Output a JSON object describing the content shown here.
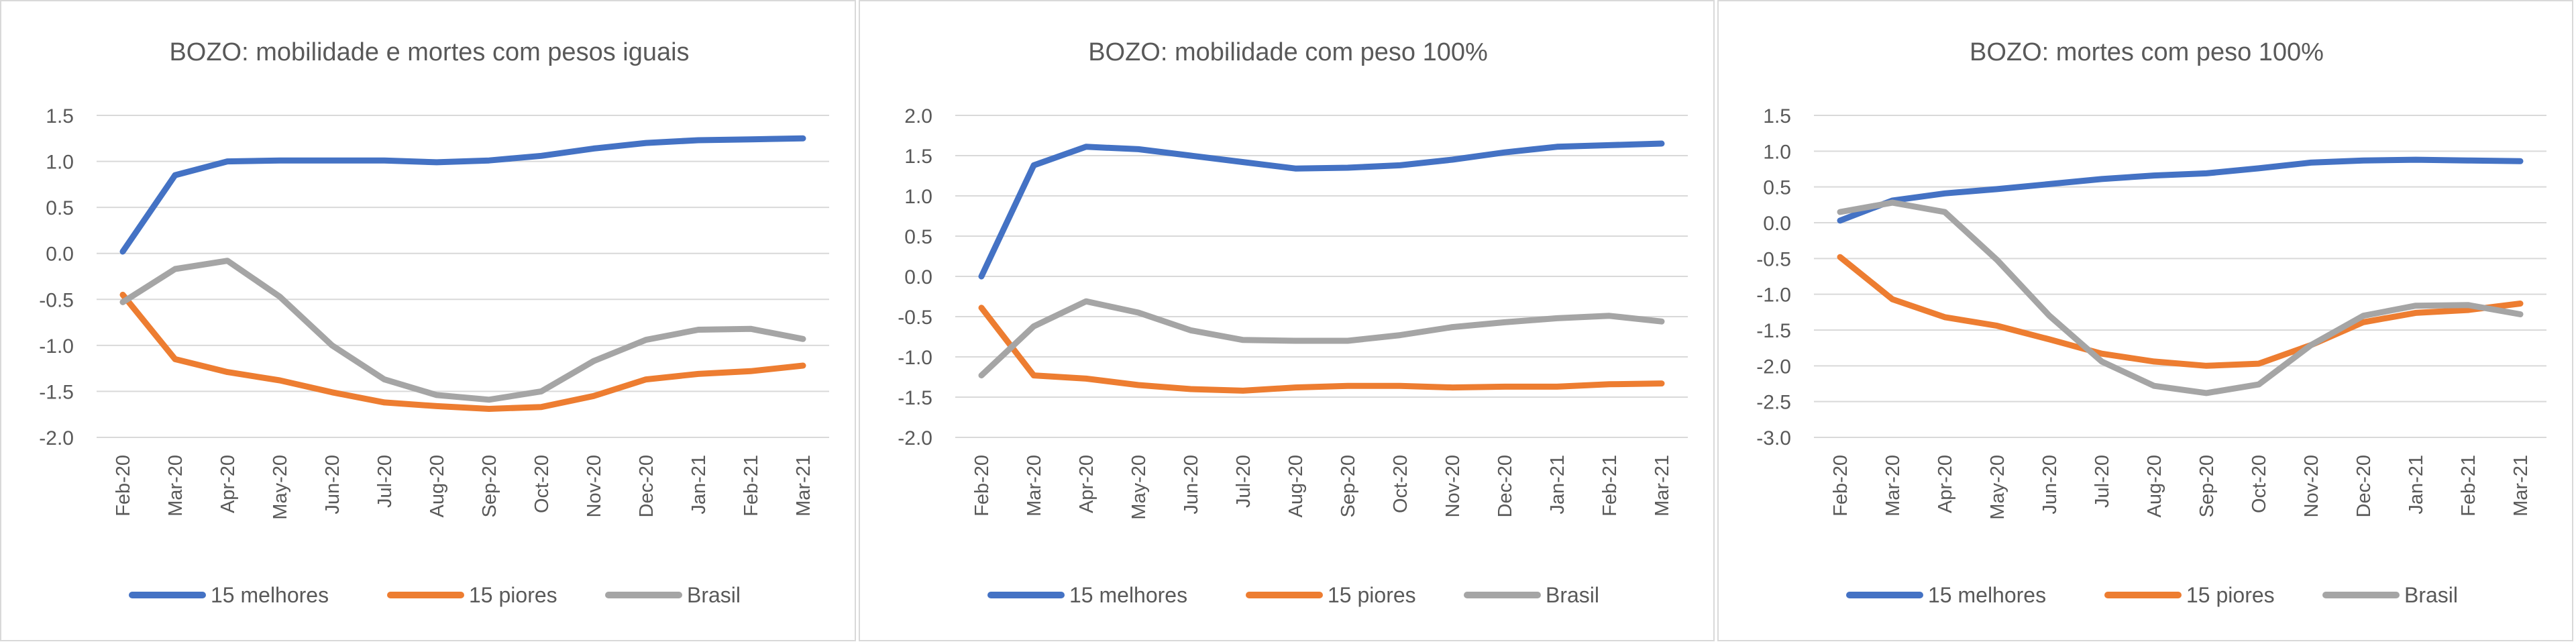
{
  "colors": {
    "15 melhores": "#4472C4",
    "15 piores": "#ED7D31",
    "Brasil": "#A5A5A5",
    "grid": "#D9D9D9",
    "text": "#595959"
  },
  "chart_data": [
    {
      "type": "line",
      "title": "BOZO: mobilidade e mortes com pesos iguais",
      "categories": [
        "Feb-20",
        "Mar-20",
        "Apr-20",
        "May-20",
        "Jun-20",
        "Jul-20",
        "Aug-20",
        "Sep-20",
        "Oct-20",
        "Nov-20",
        "Dec-20",
        "Jan-21",
        "Feb-21",
        "Mar-21"
      ],
      "ylim": [
        -2.0,
        1.5
      ],
      "yticks": [
        "1.5",
        "1.0",
        "0.5",
        "0.0",
        "-0.5",
        "-1.0",
        "-1.5",
        "-2.0"
      ],
      "grid": true,
      "legend": "bottom",
      "series": [
        {
          "name": "15 melhores",
          "values": [
            0.02,
            0.85,
            1.0,
            1.01,
            1.01,
            1.01,
            0.99,
            1.01,
            1.06,
            1.14,
            1.2,
            1.23,
            1.24,
            1.25
          ]
        },
        {
          "name": "15 piores",
          "values": [
            -0.45,
            -1.15,
            -1.29,
            -1.38,
            -1.51,
            -1.62,
            -1.66,
            -1.69,
            -1.67,
            -1.55,
            -1.37,
            -1.31,
            -1.28,
            -1.22
          ]
        },
        {
          "name": "Brasil",
          "values": [
            -0.53,
            -0.17,
            -0.08,
            -0.47,
            -1.0,
            -1.37,
            -1.54,
            -1.59,
            -1.5,
            -1.17,
            -0.94,
            -0.83,
            -0.82,
            -0.93
          ]
        }
      ]
    },
    {
      "type": "line",
      "title": "BOZO: mobilidade com peso 100%",
      "categories": [
        "Feb-20",
        "Mar-20",
        "Apr-20",
        "May-20",
        "Jun-20",
        "Jul-20",
        "Aug-20",
        "Sep-20",
        "Oct-20",
        "Nov-20",
        "Dec-20",
        "Jan-21",
        "Feb-21",
        "Mar-21"
      ],
      "ylim": [
        -2.0,
        2.0
      ],
      "yticks": [
        "2.0",
        "1.5",
        "1.0",
        "0.5",
        "0.0",
        "-0.5",
        "-1.0",
        "-1.5",
        "-2.0"
      ],
      "grid": true,
      "legend": "bottom",
      "series": [
        {
          "name": "15 melhores",
          "values": [
            0.0,
            1.38,
            1.61,
            1.58,
            1.5,
            1.42,
            1.34,
            1.35,
            1.38,
            1.45,
            1.54,
            1.61,
            1.63,
            1.65
          ]
        },
        {
          "name": "15 piores",
          "values": [
            -0.39,
            -1.23,
            -1.27,
            -1.35,
            -1.4,
            -1.42,
            -1.38,
            -1.36,
            -1.36,
            -1.38,
            -1.37,
            -1.37,
            -1.34,
            -1.33
          ]
        },
        {
          "name": "Brasil",
          "values": [
            -1.23,
            -0.62,
            -0.31,
            -0.45,
            -0.67,
            -0.79,
            -0.8,
            -0.8,
            -0.73,
            -0.63,
            -0.57,
            -0.52,
            -0.49,
            -0.56
          ]
        }
      ]
    },
    {
      "type": "line",
      "title": "BOZO: mortes com peso 100%",
      "categories": [
        "Feb-20",
        "Mar-20",
        "Apr-20",
        "May-20",
        "Jun-20",
        "Jul-20",
        "Aug-20",
        "Sep-20",
        "Oct-20",
        "Nov-20",
        "Dec-20",
        "Jan-21",
        "Feb-21",
        "Mar-21"
      ],
      "ylim": [
        -3.0,
        1.5
      ],
      "yticks": [
        "1.5",
        "1.0",
        "0.5",
        "0.0",
        "-0.5",
        "-1.0",
        "-1.5",
        "-2.0",
        "-2.5",
        "-3.0"
      ],
      "grid": true,
      "legend": "bottom",
      "series": [
        {
          "name": "15 melhores",
          "values": [
            0.03,
            0.31,
            0.41,
            0.47,
            0.54,
            0.61,
            0.66,
            0.69,
            0.76,
            0.84,
            0.87,
            0.88,
            0.87,
            0.86
          ]
        },
        {
          "name": "15 piores",
          "values": [
            -0.48,
            -1.07,
            -1.32,
            -1.44,
            -1.63,
            -1.83,
            -1.94,
            -2.0,
            -1.97,
            -1.71,
            -1.39,
            -1.26,
            -1.22,
            -1.13
          ]
        },
        {
          "name": "Brasil",
          "values": [
            0.15,
            0.28,
            0.15,
            -0.52,
            -1.3,
            -1.94,
            -2.28,
            -2.38,
            -2.26,
            -1.71,
            -1.3,
            -1.16,
            -1.15,
            -1.28
          ]
        }
      ]
    }
  ]
}
